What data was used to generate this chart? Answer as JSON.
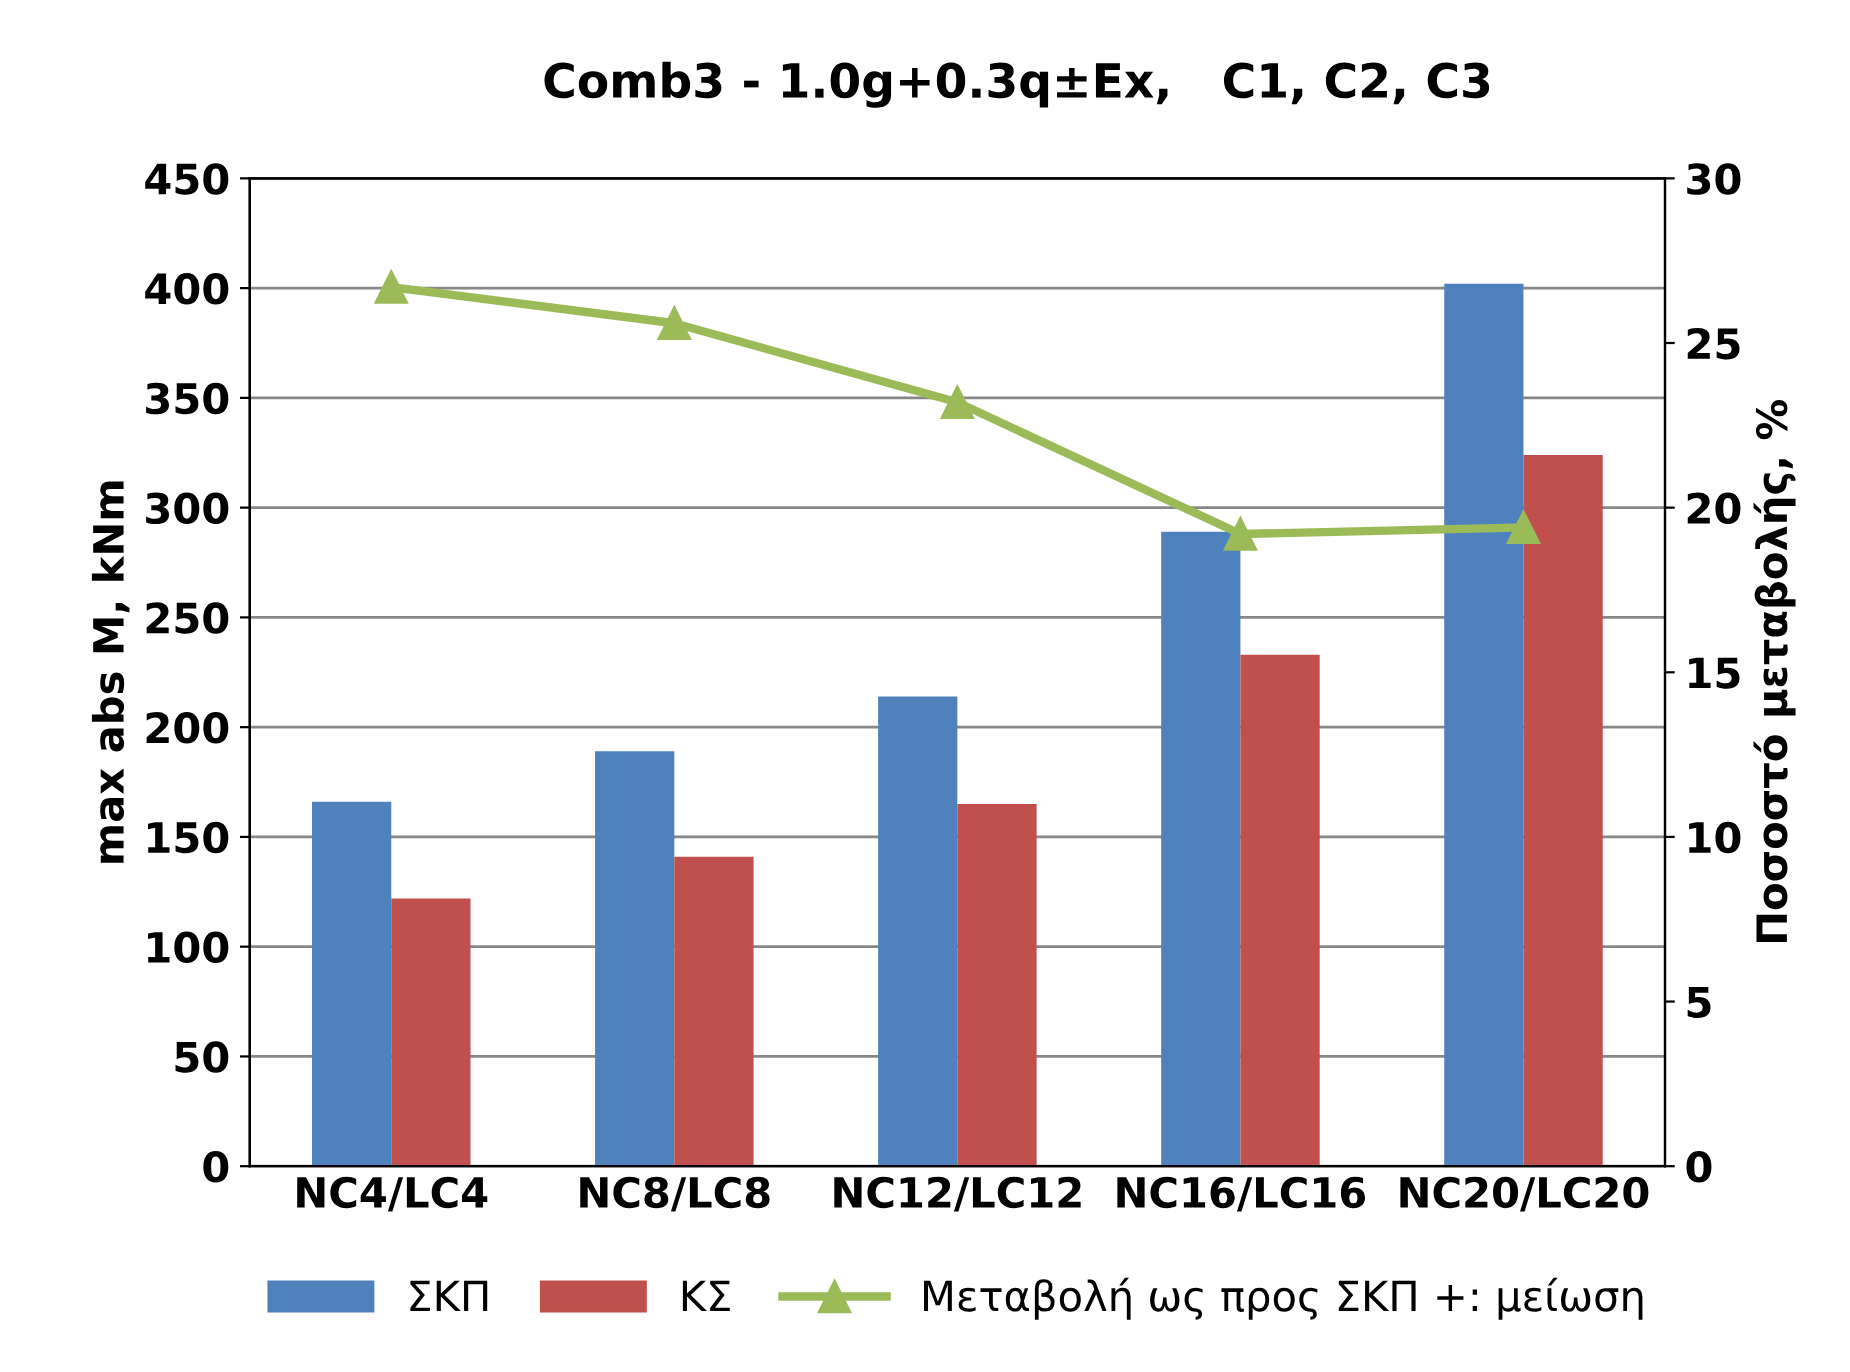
{
  "chart_data": {
    "type": "bar",
    "title": "Comb3 - 1.0g+0.3q±Ex,   C1, C2, C3",
    "ylabel": "max abs M, kNm",
    "y2label": "Ποσοστό μεταβολής, %",
    "categories": [
      "NC4/LC4",
      "NC8/LC8",
      "NC12/LC12",
      "NC16/LC16",
      "NC20/LC20"
    ],
    "series": [
      {
        "name": "ΣΚΠ",
        "color": "#4f81bd",
        "values": [
          166,
          189,
          214,
          289,
          402
        ]
      },
      {
        "name": "ΚΣ",
        "color": "#c0504d",
        "values": [
          122,
          141,
          165,
          233,
          324
        ]
      },
      {
        "name": "Μεταβολή ως προς ΣΚΠ +: μείωση",
        "type": "line",
        "axis": "y2",
        "color": "#9bbb59",
        "marker": "triangle",
        "values": [
          26.7,
          25.6,
          23.2,
          19.2,
          19.4
        ]
      }
    ],
    "ylim": [
      0,
      450
    ],
    "yticks": [
      0,
      50,
      100,
      150,
      200,
      250,
      300,
      350,
      400,
      450
    ],
    "y2lim": [
      0,
      30
    ],
    "y2ticks": [
      0,
      5,
      10,
      15,
      20,
      25,
      30
    ],
    "grid": "y",
    "legend": "bottom"
  }
}
